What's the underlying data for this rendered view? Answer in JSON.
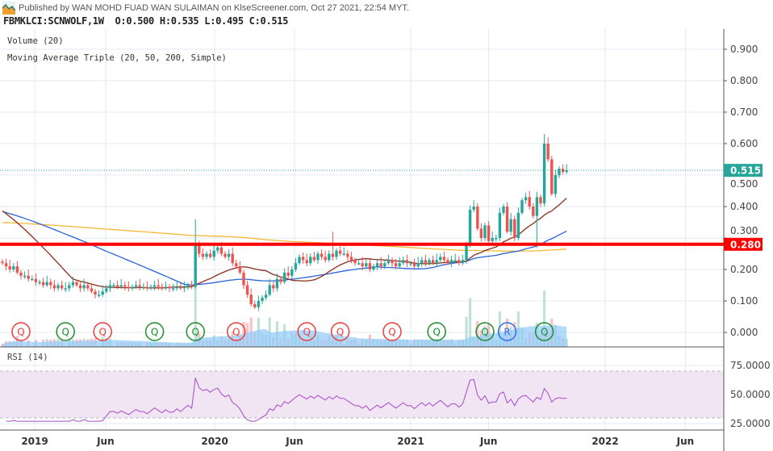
{
  "header": {
    "published": "Published by WAN MOHD FUAD WAN SULAIMAN on KlseScreener.com, Oct 27 2021, 22:54 MYT.",
    "symbol_line": "FBMKLCI:SCNWOLF,1W  O:0.500 H:0.535 L:0.495 C:0.515"
  },
  "legend": {
    "volume": "Volume (20)",
    "ma": "Moving Average Triple (20, 50, 200, Simple)",
    "rsi": "RSI (14)"
  },
  "colors": {
    "up": "#26a69a",
    "down": "#ef5350",
    "ma20": "#8b2c1a",
    "ma50": "#2962d9",
    "ma200": "#f5b731",
    "support": "#ff0000",
    "rsi": "#a64ac9",
    "rsi_band": "#f1e4f3",
    "grid": "#e3eaf0"
  },
  "price_axis": {
    "ticks": [
      "0.900",
      "0.800",
      "0.700",
      "0.600",
      "0.500",
      "0.400",
      "0.300",
      "0.200",
      "0.100",
      "0.000"
    ],
    "tick_values": [
      0.9,
      0.8,
      0.7,
      0.6,
      0.5,
      0.4,
      0.3,
      0.2,
      0.1,
      0.0
    ]
  },
  "last_price": {
    "label": "0.515",
    "value": 0.515
  },
  "support_line": {
    "label": "0.280",
    "value": 0.28
  },
  "rsi_axis": {
    "ticks": [
      "75.0000",
      "50.0000",
      "25.0000"
    ],
    "tick_values": [
      75,
      50,
      25
    ],
    "upper": 70,
    "lower": 30
  },
  "time_axis": [
    {
      "label": "2019",
      "week": 8.7
    },
    {
      "label": "Jun",
      "week": 27.8
    },
    {
      "label": "2020",
      "week": 57.2
    },
    {
      "label": "Jun",
      "week": 78.7
    },
    {
      "label": "2021",
      "week": 110
    },
    {
      "label": "Jun",
      "week": 131
    },
    {
      "label": "2022",
      "week": 162.4
    },
    {
      "label": "Jun",
      "week": 184
    }
  ],
  "ma_seed_price": 0.4,
  "closes": [
    0.22,
    0.21,
    0.2,
    0.21,
    0.19,
    0.18,
    0.18,
    0.17,
    0.17,
    0.16,
    0.16,
    0.15,
    0.16,
    0.15,
    0.14,
    0.15,
    0.14,
    0.14,
    0.15,
    0.16,
    0.15,
    0.14,
    0.15,
    0.14,
    0.13,
    0.12,
    0.12,
    0.13,
    0.14,
    0.15,
    0.15,
    0.145,
    0.15,
    0.145,
    0.14,
    0.145,
    0.15,
    0.145,
    0.145,
    0.14,
    0.145,
    0.15,
    0.145,
    0.14,
    0.145,
    0.14,
    0.14,
    0.145,
    0.14,
    0.145,
    0.15,
    0.145,
    0.28,
    0.25,
    0.24,
    0.25,
    0.24,
    0.26,
    0.27,
    0.25,
    0.24,
    0.25,
    0.22,
    0.21,
    0.19,
    0.15,
    0.12,
    0.09,
    0.08,
    0.1,
    0.11,
    0.12,
    0.15,
    0.14,
    0.17,
    0.16,
    0.19,
    0.18,
    0.2,
    0.22,
    0.24,
    0.23,
    0.22,
    0.24,
    0.23,
    0.25,
    0.24,
    0.23,
    0.25,
    0.24,
    0.26,
    0.25,
    0.25,
    0.24,
    0.23,
    0.22,
    0.22,
    0.21,
    0.22,
    0.2,
    0.21,
    0.22,
    0.21,
    0.22,
    0.23,
    0.22,
    0.21,
    0.22,
    0.23,
    0.22,
    0.22,
    0.21,
    0.22,
    0.23,
    0.22,
    0.23,
    0.22,
    0.23,
    0.24,
    0.23,
    0.22,
    0.23,
    0.23,
    0.22,
    0.23,
    0.28,
    0.39,
    0.4,
    0.33,
    0.3,
    0.34,
    0.29,
    0.3,
    0.3,
    0.38,
    0.4,
    0.32,
    0.36,
    0.3,
    0.38,
    0.42,
    0.43,
    0.4,
    0.37,
    0.43,
    0.41,
    0.6,
    0.55,
    0.44,
    0.5,
    0.52,
    0.51,
    0.515
  ],
  "spike_highs": [
    {
      "week": 52,
      "high": 0.36
    },
    {
      "week": 89,
      "high": 0.32
    },
    {
      "week": 146,
      "high": 0.63
    },
    {
      "week": 144,
      "low": 0.27
    }
  ],
  "earnings_markers": [
    {
      "week": 5,
      "label": "Q",
      "type": "miss"
    },
    {
      "week": 17,
      "label": "Q",
      "type": "beat"
    },
    {
      "week": 27,
      "label": "Q",
      "type": "miss"
    },
    {
      "week": 41,
      "label": "Q",
      "type": "beat"
    },
    {
      "week": 52,
      "label": "Q",
      "type": "beat"
    },
    {
      "week": 63,
      "label": "Q",
      "type": "miss"
    },
    {
      "week": 82,
      "label": "Q",
      "type": "miss"
    },
    {
      "week": 91,
      "label": "Q",
      "type": "miss"
    },
    {
      "week": 105,
      "label": "Q",
      "type": "miss"
    },
    {
      "week": 117,
      "label": "Q",
      "type": "beat"
    },
    {
      "week": 130,
      "label": "Q",
      "type": "beat"
    },
    {
      "week": 136,
      "label": "R",
      "type": "report"
    },
    {
      "week": 146,
      "label": "Q",
      "type": "beat"
    }
  ]
}
